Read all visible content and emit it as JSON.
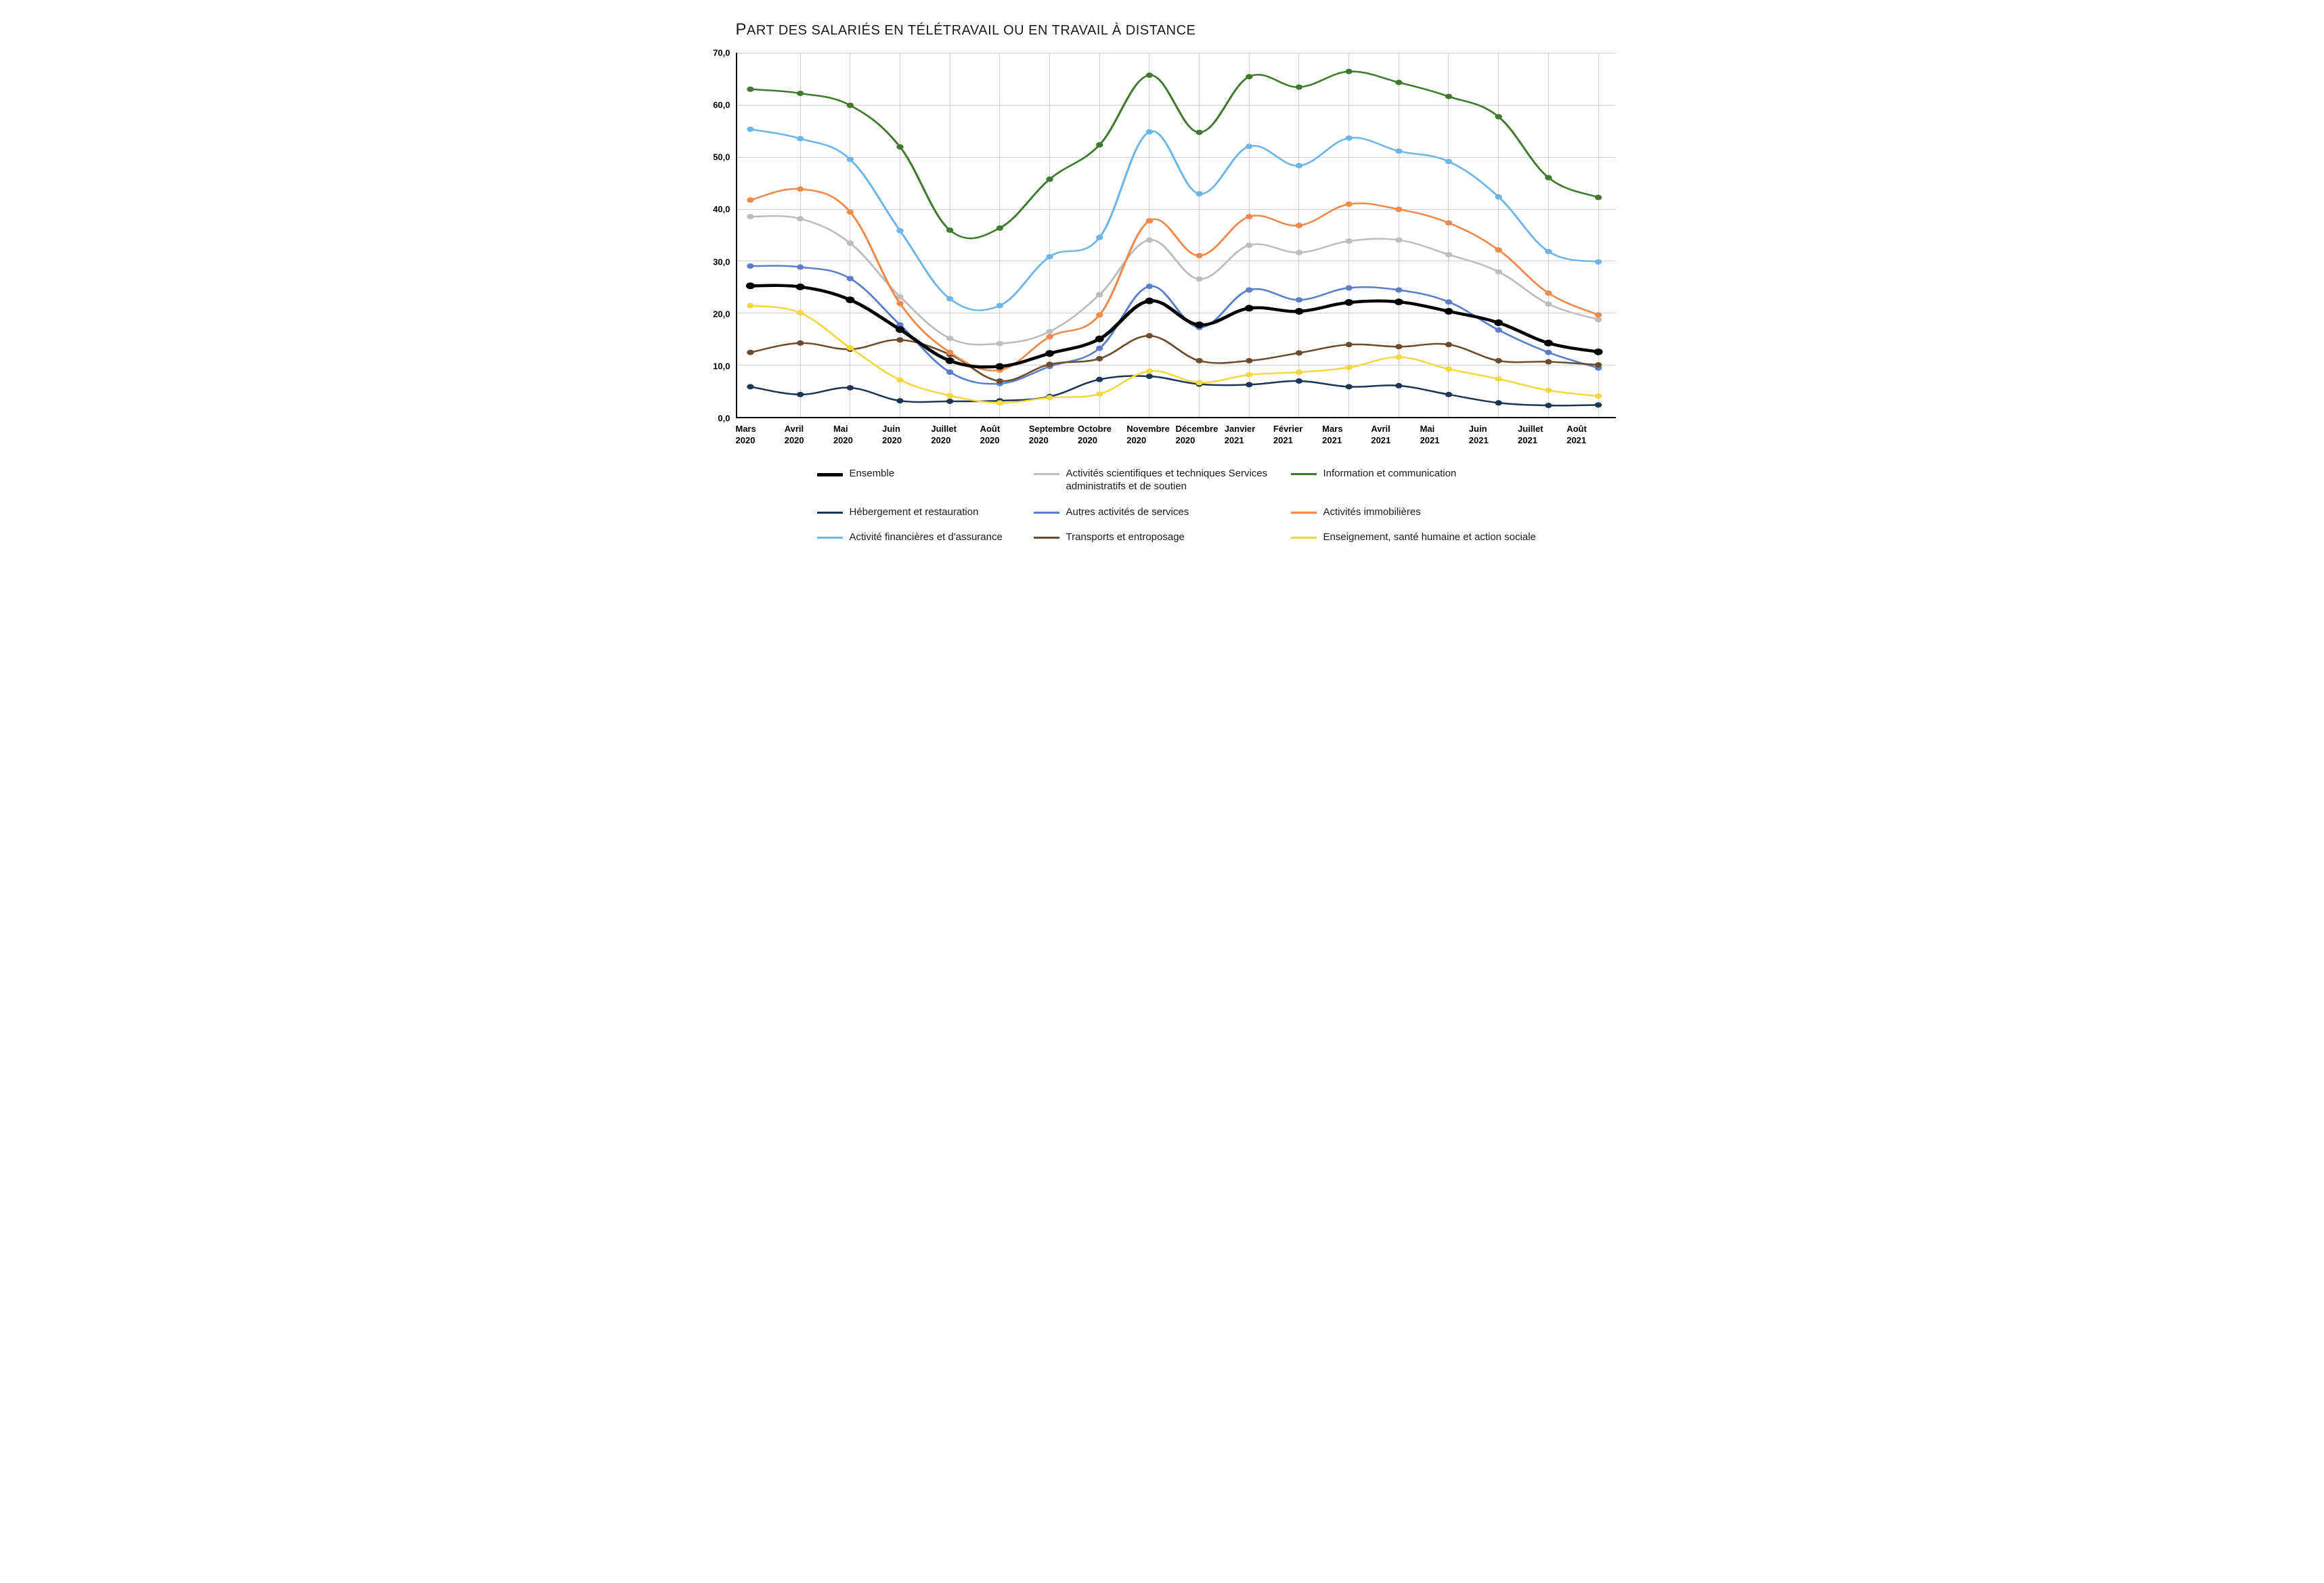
{
  "chart": {
    "title_prefix": "P",
    "title_rest": "ART DES SALARIÉS EN TÉLÉTRAVAIL OU EN TRAVAIL À DISTANCE",
    "background_color": "#ffffff",
    "grid_color": "#d0d0d0",
    "axis_color": "#000000",
    "ylim": [
      0,
      70
    ],
    "ytick_step": 10,
    "yticks": [
      "0,0",
      "10,0",
      "20,0",
      "30,0",
      "40,0",
      "50,0",
      "60,0",
      "70,0"
    ],
    "categories": [
      {
        "month": "Mars",
        "year": "2020"
      },
      {
        "month": "Avril",
        "year": "2020"
      },
      {
        "month": "Mai",
        "year": "2020"
      },
      {
        "month": "Juin",
        "year": "2020"
      },
      {
        "month": "Juillet",
        "year": "2020"
      },
      {
        "month": "Août",
        "year": "2020"
      },
      {
        "month": "Septembre",
        "year": "2020"
      },
      {
        "month": "Octobre",
        "year": "2020"
      },
      {
        "month": "Novembre",
        "year": "2020"
      },
      {
        "month": "Décembre",
        "year": "2020"
      },
      {
        "month": "Janvier",
        "year": "2021"
      },
      {
        "month": "Février",
        "year": "2021"
      },
      {
        "month": "Mars",
        "year": "2021"
      },
      {
        "month": "Avril",
        "year": "2021"
      },
      {
        "month": "Mai",
        "year": "2021"
      },
      {
        "month": "Juin",
        "year": "2021"
      },
      {
        "month": "Juillet",
        "year": "2021"
      },
      {
        "month": "Août",
        "year": "2021"
      }
    ],
    "series": [
      {
        "key": "ensemble",
        "label": "Ensemble",
        "color": "#000000",
        "line_width": 4.5,
        "marker_radius": 5,
        "values": [
          25.2,
          25.0,
          22.5,
          16.8,
          10.8,
          9.7,
          12.2,
          15.0,
          22.3,
          17.7,
          20.9,
          20.3,
          22.0,
          22.1,
          20.3,
          18.1,
          14.2,
          12.5
        ]
      },
      {
        "key": "hebergement",
        "label": "Hébergement et restauration",
        "color": "#1d3557",
        "line_width": 2.5,
        "marker_radius": 4,
        "values": [
          5.8,
          4.3,
          5.6,
          3.1,
          3.0,
          3.1,
          3.9,
          7.2,
          7.8,
          6.3,
          6.2,
          6.9,
          5.8,
          6.0,
          4.3,
          2.7,
          2.2,
          2.3
        ]
      },
      {
        "key": "finance",
        "label": "Activité financières et d'assurance",
        "color": "#6fb6e8",
        "line_width": 2.5,
        "marker_radius": 4,
        "values": [
          55.3,
          53.5,
          49.5,
          35.8,
          22.7,
          21.4,
          30.8,
          34.5,
          54.8,
          42.9,
          52.0,
          48.3,
          53.6,
          51.1,
          49.1,
          42.3,
          31.8,
          29.8
        ]
      },
      {
        "key": "scientifiques",
        "label": "Activités scientifiques et techniques Services administratifs et de soutien",
        "color": "#bdbdbd",
        "line_width": 2.5,
        "marker_radius": 4,
        "values": [
          38.5,
          38.1,
          33.4,
          23.1,
          15.1,
          14.1,
          16.4,
          23.5,
          34.0,
          26.5,
          33.0,
          31.6,
          33.8,
          34.0,
          31.2,
          27.9,
          21.7,
          18.7
        ]
      },
      {
        "key": "autres",
        "label": "Autres activités de services",
        "color": "#5a7ec9",
        "line_width": 2.5,
        "marker_radius": 4,
        "values": [
          29.0,
          28.8,
          26.6,
          17.7,
          8.6,
          6.4,
          9.7,
          13.2,
          25.1,
          17.2,
          24.4,
          22.5,
          24.8,
          24.4,
          22.1,
          16.7,
          12.4,
          9.4
        ]
      },
      {
        "key": "transports",
        "label": "Transports et entroposage",
        "color": "#6b4c2c",
        "line_width": 2.5,
        "marker_radius": 4,
        "values": [
          12.4,
          14.2,
          13.0,
          14.8,
          12.0,
          6.9,
          10.1,
          11.2,
          15.6,
          10.8,
          10.8,
          12.3,
          13.9,
          13.5,
          13.9,
          10.8,
          10.6,
          10.0
        ]
      },
      {
        "key": "information",
        "label": "Information et communication",
        "color": "#3f7a2e",
        "line_width": 2.5,
        "marker_radius": 4,
        "values": [
          63.0,
          62.2,
          59.9,
          51.9,
          35.9,
          36.3,
          45.7,
          52.3,
          65.7,
          54.7,
          65.4,
          63.4,
          66.4,
          64.3,
          61.6,
          57.7,
          46.0,
          42.2
        ]
      },
      {
        "key": "immobilieres",
        "label": "Activités immobilières",
        "color": "#f08a4b",
        "line_width": 2.5,
        "marker_radius": 4,
        "values": [
          41.7,
          43.8,
          39.4,
          21.8,
          12.4,
          9.0,
          15.4,
          19.6,
          37.7,
          31.0,
          38.5,
          36.8,
          40.9,
          39.9,
          37.3,
          32.1,
          23.8,
          19.6
        ]
      },
      {
        "key": "enseignement",
        "label": "Enseignement, santé humaine et action sociale",
        "color": "#f2d940",
        "line_width": 2.5,
        "marker_radius": 4,
        "values": [
          21.4,
          20.0,
          13.3,
          7.1,
          4.1,
          2.7,
          3.7,
          4.4,
          8.8,
          6.6,
          8.1,
          8.6,
          9.5,
          11.5,
          9.2,
          7.3,
          5.1,
          4.0
        ]
      }
    ],
    "legend_layout": [
      [
        "ensemble",
        "scientifiques",
        "information"
      ],
      [
        "hebergement",
        "autres",
        "immobilieres"
      ],
      [
        "finance",
        "transports",
        "enseignement"
      ]
    ]
  }
}
